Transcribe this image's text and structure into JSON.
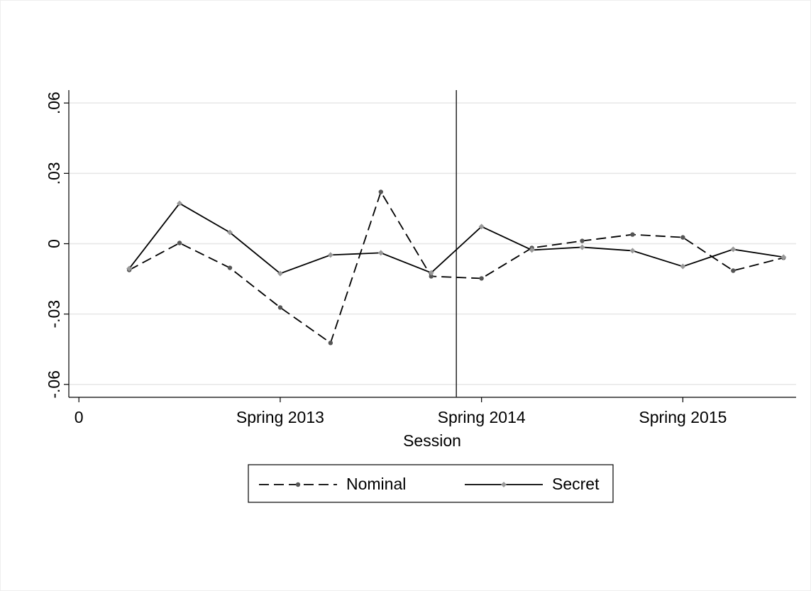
{
  "chart_data": {
    "type": "line",
    "xlabel": "Session",
    "x": [
      1,
      2,
      3,
      4,
      5,
      6,
      7,
      8,
      9,
      10,
      11,
      12,
      13,
      14
    ],
    "series": [
      {
        "name": "Nominal",
        "color": "#000000",
        "marker_color": "#555555",
        "dash": true,
        "values": [
          -0.0112,
          0.0003,
          -0.0103,
          -0.0272,
          -0.0423,
          0.0221,
          -0.0139,
          -0.0148,
          -0.0018,
          0.0012,
          0.0039,
          0.0027,
          -0.0115,
          -0.006
        ]
      },
      {
        "name": "Secret",
        "color": "#000000",
        "marker_color": "#999999",
        "dash": false,
        "values": [
          -0.0106,
          0.0172,
          0.0048,
          -0.0127,
          -0.0048,
          -0.0039,
          -0.0124,
          0.0073,
          -0.0027,
          -0.0015,
          -0.003,
          -0.0097,
          -0.0024,
          -0.0057
        ]
      }
    ],
    "xlim": [
      -0.2,
      14.25
    ],
    "xticks": [
      0,
      {
        "value": 4,
        "label": "Spring 2013"
      },
      {
        "value": 8,
        "label": "Spring 2014"
      },
      {
        "value": 12,
        "label": "Spring 2015"
      }
    ],
    "ylim": [
      -0.0655,
      0.0655
    ],
    "yticks": [
      {
        "value": -0.06,
        "label": "-.06"
      },
      {
        "value": -0.03,
        "label": "-.03"
      },
      0,
      {
        "value": 0.03,
        "label": ".03"
      },
      {
        "value": 0.06,
        "label": ".06"
      }
    ],
    "xline": 7.5,
    "grid": true,
    "legend": "bottom"
  }
}
